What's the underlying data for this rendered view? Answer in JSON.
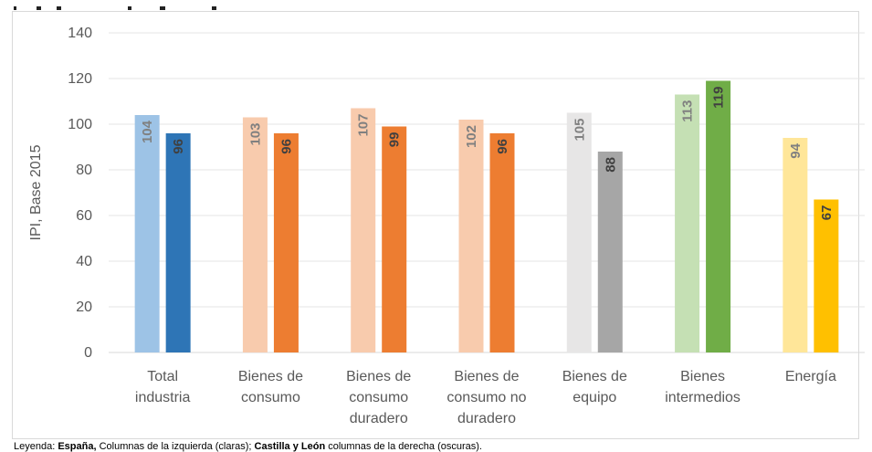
{
  "chart_data": {
    "type": "bar",
    "title": "",
    "ylabel": "IPI, Base 2015",
    "ylim": [
      0,
      140
    ],
    "yticks": [
      0,
      20,
      40,
      60,
      80,
      100,
      120,
      140
    ],
    "grid": true,
    "categories": [
      [
        "Total",
        "industria"
      ],
      [
        "Bienes de",
        "consumo"
      ],
      [
        "Bienes de",
        "consumo",
        "duradero"
      ],
      [
        "Bienes de",
        "consumo no",
        "duradero"
      ],
      [
        "Bienes de",
        "equipo"
      ],
      [
        "Bienes",
        "intermedios"
      ],
      [
        "Energía"
      ]
    ],
    "series": [
      {
        "values": [
          104,
          103,
          107,
          102,
          105,
          113,
          94
        ],
        "colors": [
          "#9dc3e6",
          "#f8cbad",
          "#f8cbad",
          "#f8cbad",
          "#e7e6e6",
          "#c5e0b4",
          "#ffe699"
        ],
        "label_color": "#808080"
      },
      {
        "values": [
          96,
          96,
          99,
          96,
          88,
          119,
          67
        ],
        "colors": [
          "#2e75b6",
          "#ed7d31",
          "#ed7d31",
          "#ed7d31",
          "#a6a6a6",
          "#70ad47",
          "#ffc000"
        ],
        "label_color": "#404040"
      }
    ]
  },
  "legend": {
    "prefix": "Leyenda: ",
    "espana": "España,",
    "espana_desc": " Columnas de la izquierda (claras); ",
    "cyl": "Castilla y León",
    "cyl_desc": " columnas de la derecha (oscuras)."
  }
}
